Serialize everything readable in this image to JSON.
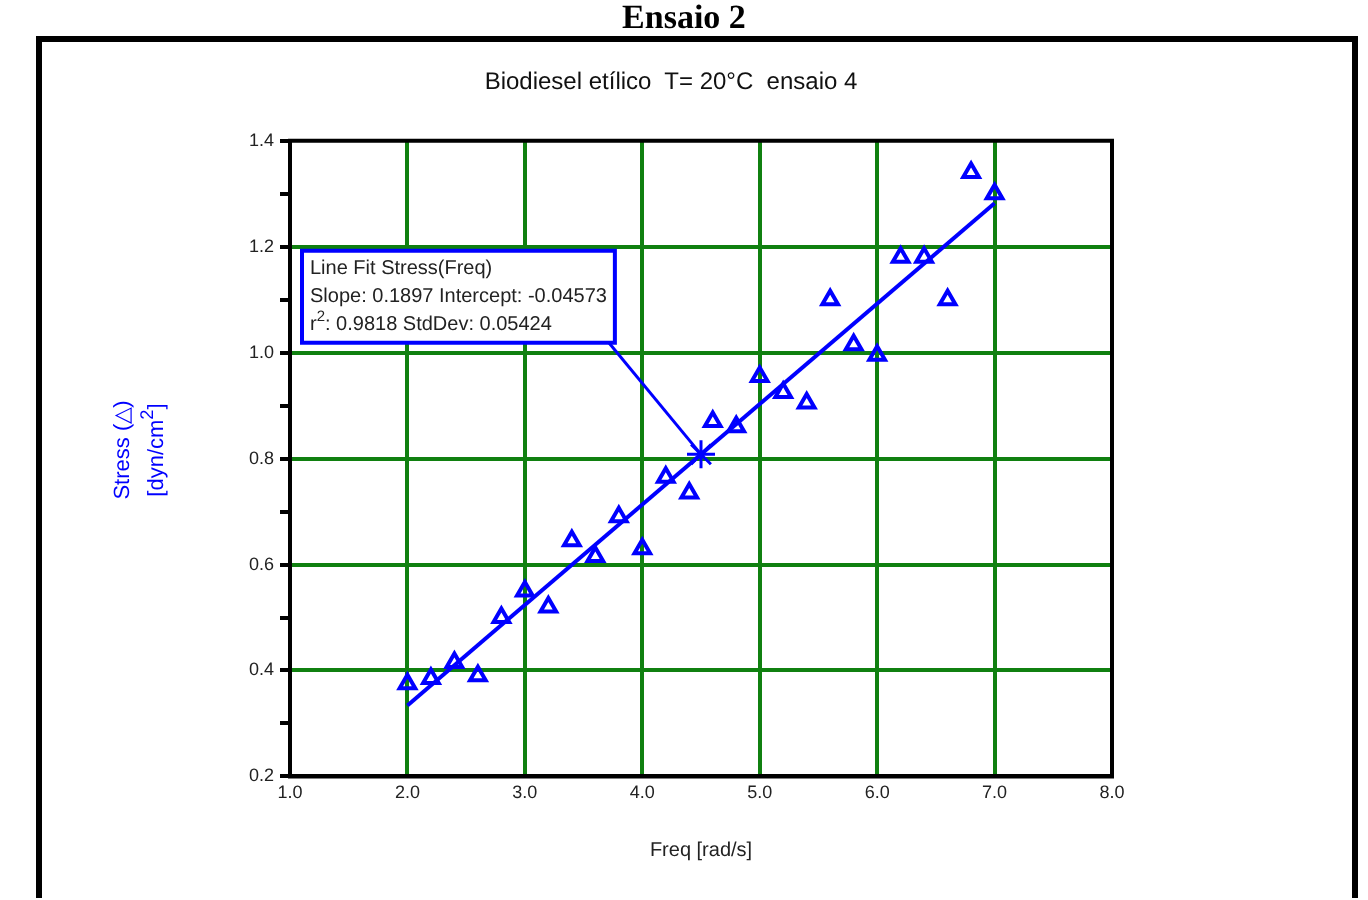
{
  "chart_data": {
    "type": "scatter",
    "title": "Biodiesel etílico  T= 20°C  ensaio 4",
    "subtitle": "Ensaio 2",
    "xlabel": "Freq [rad/s]",
    "ylabel": "Stress (△)\n[dyn/cm$^{2}$]",
    "x": [
      2.0,
      2.2,
      2.4,
      2.6,
      2.8,
      3.0,
      3.2,
      3.4,
      3.6,
      3.8,
      4.0,
      4.2,
      4.4,
      4.6,
      4.8,
      5.0,
      5.2,
      5.4,
      5.6,
      5.8,
      6.0,
      6.2,
      6.4,
      6.6,
      6.8,
      7.0
    ],
    "series": [
      {
        "color": "#0000ff",
        "marker": "triangle",
        "values": [
          0.375,
          0.385,
          0.415,
          0.39,
          0.5,
          0.55,
          0.52,
          0.645,
          0.615,
          0.69,
          0.63,
          0.765,
          0.735,
          0.87,
          0.86,
          0.955,
          0.925,
          0.905,
          1.1,
          1.015,
          0.995,
          1.18,
          1.18,
          1.1,
          1.34,
          1.3
        ]
      },
      {
        "type": "line",
        "color": "#0000ff",
        "marker": "none",
        "line_style": "solid",
        "x": [
          2.0,
          7.0
        ],
        "values": [
          0.334,
          1.282
        ]
      }
    ],
    "annotations": [
      {
        "text": "Line Fit Stress(Freq)\nSlope: 0.1897 Intercept: -0.04573\nr$^{2}$: 0.9818 StdDev: 0.05424",
        "x": 4.5,
        "y": 0.808
      }
    ],
    "xlim": [
      1.0,
      8.0
    ],
    "xticks": [
      {
        "value": 1.0,
        "label": "1.0"
      },
      {
        "value": 2.0,
        "label": "2.0"
      },
      {
        "value": 3.0,
        "label": "3.0"
      },
      {
        "value": 4.0,
        "label": "4.0"
      },
      {
        "value": 5.0,
        "label": "5.0"
      },
      {
        "value": 6.0,
        "label": "6.0"
      },
      {
        "value": 7.0,
        "label": "7.0"
      },
      {
        "value": 8.0,
        "label": "8.0"
      }
    ],
    "ylim": [
      0.2,
      1.4
    ],
    "yticks": [
      {
        "value": 0.2,
        "label": "0.2"
      },
      {
        "value": 0.3,
        "label": null
      },
      {
        "value": 0.4,
        "label": "0.4"
      },
      {
        "value": 0.5,
        "label": null
      },
      {
        "value": 0.6,
        "label": "0.6"
      },
      {
        "value": 0.7,
        "label": null
      },
      {
        "value": 0.8,
        "label": "0.8"
      },
      {
        "value": 0.9,
        "label": null
      },
      {
        "value": 1.0,
        "label": "1.0"
      },
      {
        "value": 1.1,
        "label": null
      },
      {
        "value": 1.2,
        "label": "1.2"
      },
      {
        "value": 1.3,
        "label": null
      },
      {
        "value": 1.4,
        "label": "1.4"
      }
    ],
    "grid": true,
    "legend": false
  }
}
